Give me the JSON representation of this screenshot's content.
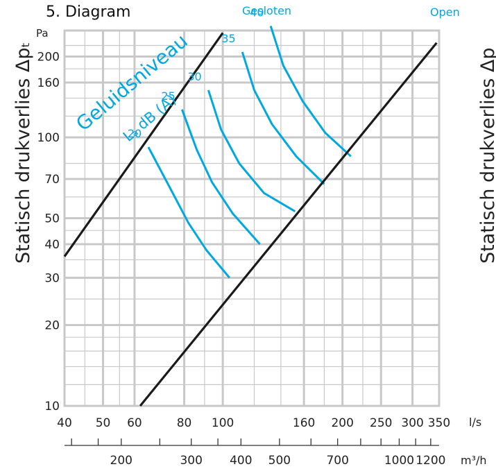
{
  "heading": "5. Diagram",
  "label_closed": "Gesloten",
  "label_open": "Open",
  "y_unit": "Pa",
  "x_unit_ls": "l/s",
  "x_unit_m3h": "m³/h",
  "ylabel": "Statisch drukverlies Δpₜ",
  "ylabel_cut": "Statisch drukverlies Δp",
  "noise_title": "Geluidsniveau",
  "noise_sub": "Lₐ dB (A)",
  "colors": {
    "accent": "#00a8e0",
    "grid": "#c8c8c8",
    "line": "#1a1a1a"
  },
  "chart_data": {
    "type": "line",
    "title": "5. Diagram",
    "xscale": "log",
    "yscale": "log",
    "xlabel": "l/s",
    "x2label": "m³/h",
    "ylabel": "Statisch drukverlies Δpₜ",
    "xlim": [
      40,
      350
    ],
    "ylim": [
      10,
      250
    ],
    "grid": true,
    "x_ticks": [
      "40",
      "50",
      "60",
      "80",
      "100",
      "160",
      "200",
      "250",
      "300",
      "350"
    ],
    "x2_ticks": [
      "200",
      "300",
      "400",
      "500",
      "700",
      "1000",
      "1200"
    ],
    "y_ticks": [
      "200",
      "160",
      "100",
      "70",
      "50",
      "40",
      "30",
      "20",
      "10"
    ],
    "series": [
      {
        "name": "Gesloten",
        "x": [
          40,
          100
        ],
        "y": [
          36,
          245
        ]
      },
      {
        "name": "Open",
        "x": [
          62,
          345
        ],
        "y": [
          10,
          225
        ]
      }
    ],
    "noise_curves": [
      {
        "label": "20",
        "x": [
          65,
          74,
          82,
          91,
          104
        ],
        "y": [
          92,
          64,
          48,
          38,
          30
        ]
      },
      {
        "label": "25",
        "x": [
          79,
          86,
          94,
          106,
          124
        ],
        "y": [
          127,
          90,
          68,
          52,
          40
        ]
      },
      {
        "label": "30",
        "x": [
          92,
          99,
          110,
          127,
          152
        ],
        "y": [
          150,
          107,
          80,
          62,
          53
        ]
      },
      {
        "label": "35",
        "x": [
          112,
          120,
          133,
          153,
          180
        ],
        "y": [
          208,
          150,
          112,
          85,
          67
        ]
      },
      {
        "label": "40",
        "x": [
          132,
          142,
          159,
          181,
          210
        ],
        "y": [
          260,
          185,
          136,
          104,
          85
        ]
      }
    ]
  }
}
